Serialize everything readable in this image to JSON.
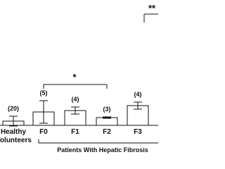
{
  "chart_data": {
    "type": "bar",
    "categories": [
      "Healthy Volunteers",
      "F0",
      "F1",
      "F2",
      "F3"
    ],
    "values": [
      6,
      19,
      21,
      11,
      28
    ],
    "errors": [
      7,
      16,
      5,
      1,
      5
    ],
    "n_labels": [
      "(20)",
      "(5)",
      "(4)",
      "(3)",
      "(4)"
    ],
    "group_label": "Patients With Hepatic Fibrosis",
    "annotations": [
      "*",
      "**"
    ],
    "color": "#ffffff"
  }
}
